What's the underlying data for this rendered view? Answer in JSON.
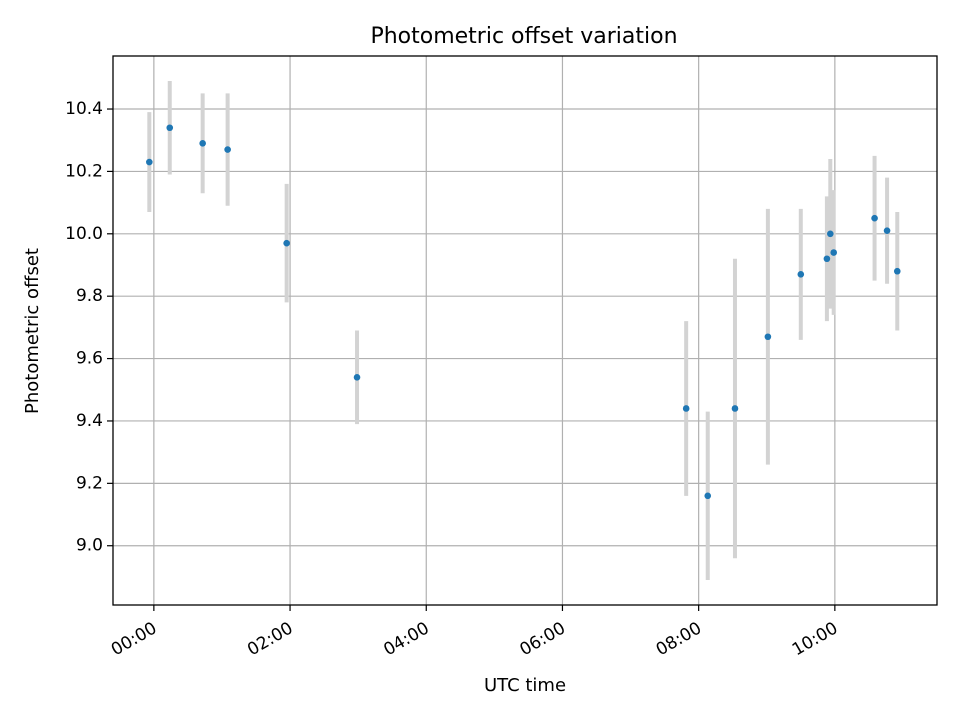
{
  "chart_data": {
    "type": "scatter",
    "title": "Photometric offset variation",
    "xlabel": "UTC time",
    "ylabel": "Photometric offset",
    "xlim": [
      "-00:36",
      "11:30"
    ],
    "ylim": [
      8.81,
      10.57
    ],
    "grid": true,
    "x_ticks": [
      "00:00",
      "02:00",
      "04:00",
      "06:00",
      "08:00",
      "10:00"
    ],
    "y_ticks": [
      9.0,
      9.2,
      9.4,
      9.6,
      9.8,
      10.0,
      10.2,
      10.4
    ],
    "y_tick_labels": [
      "9.0",
      "9.2",
      "9.4",
      "9.6",
      "9.8",
      "10.0",
      "10.2",
      "10.4"
    ],
    "marker_color": "#1f77b4",
    "errorbar_color": "#d3d3d3",
    "points": [
      {
        "time": "23:56",
        "y": 10.23,
        "err": 0.16
      },
      {
        "time": "00:14",
        "y": 10.34,
        "err": 0.15
      },
      {
        "time": "00:43",
        "y": 10.29,
        "err": 0.16
      },
      {
        "time": "01:05",
        "y": 10.27,
        "err": 0.18
      },
      {
        "time": "01:57",
        "y": 9.97,
        "err": 0.19
      },
      {
        "time": "02:59",
        "y": 9.54,
        "err": 0.15
      },
      {
        "time": "07:49",
        "y": 9.44,
        "err": 0.28
      },
      {
        "time": "08:08",
        "y": 9.16,
        "err": 0.27
      },
      {
        "time": "08:32",
        "y": 9.44,
        "err": 0.48
      },
      {
        "time": "09:01",
        "y": 9.67,
        "err": 0.41
      },
      {
        "time": "09:30",
        "y": 9.87,
        "err": 0.21
      },
      {
        "time": "09:53",
        "y": 9.92,
        "err": 0.2
      },
      {
        "time": "09:56",
        "y": 10.0,
        "err": 0.24
      },
      {
        "time": "09:59",
        "y": 9.94,
        "err": 0.2
      },
      {
        "time": "10:35",
        "y": 10.05,
        "err": 0.2
      },
      {
        "time": "10:46",
        "y": 10.01,
        "err": 0.17
      },
      {
        "time": "10:55",
        "y": 9.88,
        "err": 0.19
      }
    ]
  }
}
